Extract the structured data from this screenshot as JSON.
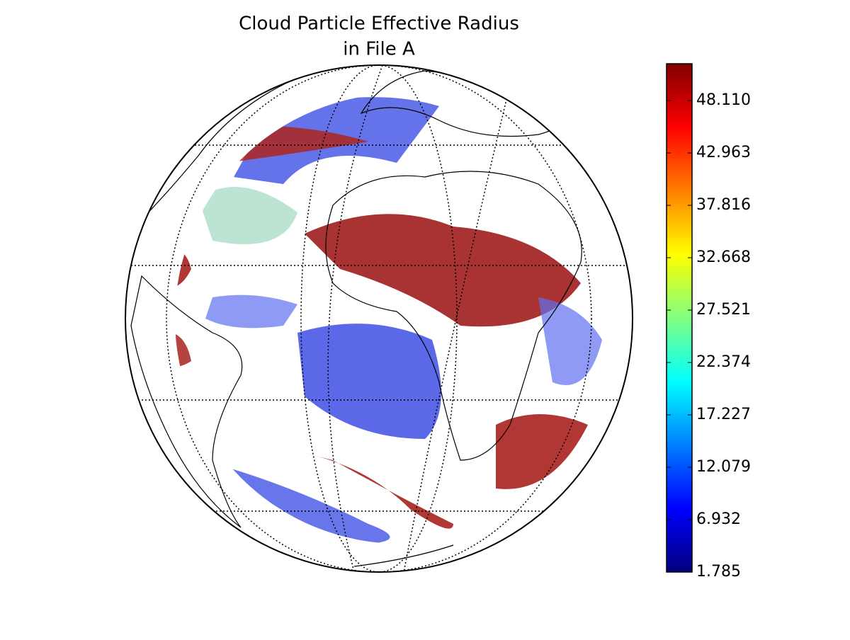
{
  "chart_data": {
    "type": "map",
    "title": [
      "Cloud Particle Effective Radius",
      "in File A"
    ],
    "colorbar": {
      "lim": [
        1.785,
        51.73
      ],
      "ticks": [
        1.785,
        6.932,
        12.079,
        17.227,
        22.374,
        27.521,
        32.668,
        37.816,
        42.963,
        {
          "value": 48.11,
          "label": "48.110"
        }
      ],
      "colors": [
        "#00007f",
        "#0000ff",
        "#007fff",
        "#00ffff",
        "#7fff7f",
        "#ffff00",
        "#ff7f00",
        "#ff0000",
        "#7f0000"
      ]
    }
  }
}
